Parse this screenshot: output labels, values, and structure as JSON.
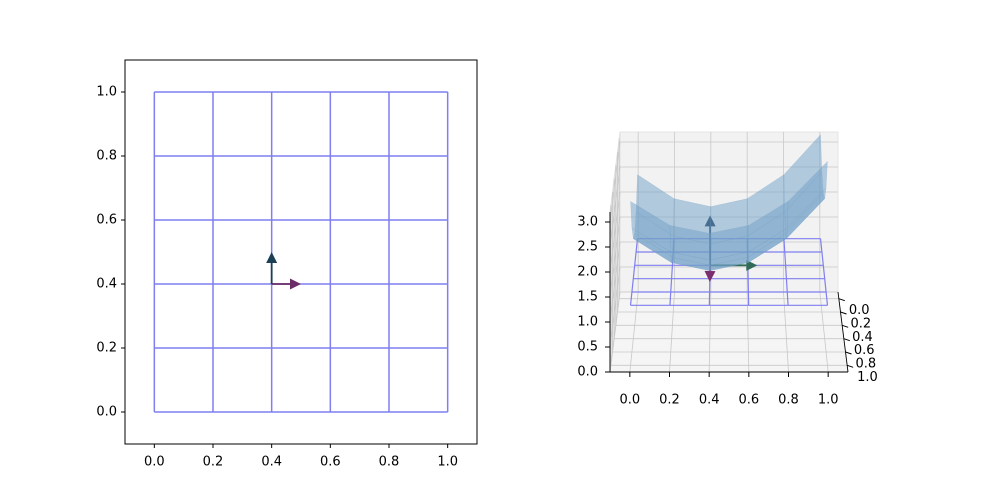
{
  "chart_data": [
    {
      "type": "quiver",
      "xlim": [
        -0.1,
        1.1
      ],
      "ylim": [
        -0.1,
        1.1
      ],
      "xticks": [
        {
          "value": 0,
          "label": "0.0"
        },
        {
          "value": 0.2,
          "label": "0.2"
        },
        {
          "value": 0.4,
          "label": "0.4"
        },
        {
          "value": 0.6,
          "label": "0.6"
        },
        {
          "value": 0.8,
          "label": "0.8"
        },
        {
          "value": 1,
          "label": "1.0"
        }
      ],
      "yticks": [
        {
          "value": 0,
          "label": "0.0"
        },
        {
          "value": 0.2,
          "label": "0.2"
        },
        {
          "value": 0.4,
          "label": "0.4"
        },
        {
          "value": 0.6,
          "label": "0.6"
        },
        {
          "value": 0.8,
          "label": "0.8"
        },
        {
          "value": 1,
          "label": "1.0"
        }
      ],
      "mesh": [
        0,
        0.2,
        0.4,
        0.6,
        0.8,
        1
      ],
      "mesh_color": "#7f7ff0",
      "arrows": [
        {
          "x": 0.4,
          "y": 0.4,
          "u": 0.1,
          "v": 0,
          "color": "#6b2d68"
        },
        {
          "x": 0.4,
          "y": 0.4,
          "u": 0,
          "v": 0.1,
          "color": "#1c3f55"
        }
      ]
    },
    {
      "type": "surface3d",
      "xlim": [
        -0.1,
        1.1
      ],
      "ylim": [
        -0.1,
        1.1
      ],
      "zlim": [
        0,
        3.2
      ],
      "xticks": [
        {
          "value": 0,
          "label": "0.0"
        },
        {
          "value": 0.2,
          "label": "0.2"
        },
        {
          "value": 0.4,
          "label": "0.4"
        },
        {
          "value": 0.6,
          "label": "0.6"
        },
        {
          "value": 0.8,
          "label": "0.8"
        },
        {
          "value": 1,
          "label": "1.0"
        }
      ],
      "yticks": [
        {
          "value": 0,
          "label": "0.0"
        },
        {
          "value": 0.2,
          "label": "0.2"
        },
        {
          "value": 0.4,
          "label": "0.4"
        },
        {
          "value": 0.6,
          "label": "0.6"
        },
        {
          "value": 0.8,
          "label": "0.8"
        },
        {
          "value": 1,
          "label": "1.0"
        }
      ],
      "zticks": [
        {
          "value": 0,
          "label": "0.0"
        },
        {
          "value": 0.5,
          "label": "0.5"
        },
        {
          "value": 1,
          "label": "1.0"
        },
        {
          "value": 1.5,
          "label": "1.5"
        },
        {
          "value": 2,
          "label": "2.0"
        },
        {
          "value": 2.5,
          "label": "2.5"
        },
        {
          "value": 3,
          "label": "3.0"
        }
      ],
      "x": [
        0,
        0.2,
        0.4,
        0.6,
        0.8,
        1
      ],
      "y": [
        0,
        0.2,
        0.4,
        0.6,
        0.8,
        1
      ],
      "z": [
        [
          2.48,
          2.0,
          1.84,
          2.0,
          2.48,
          3.28
        ],
        [
          2.0,
          1.52,
          1.36,
          1.52,
          2.0,
          2.8
        ],
        [
          1.84,
          1.36,
          1.2,
          1.36,
          1.84,
          2.64
        ],
        [
          2.0,
          1.52,
          1.36,
          1.52,
          2.0,
          2.8
        ],
        [
          2.48,
          2.0,
          1.84,
          2.0,
          2.48,
          3.28
        ],
        [
          3.28,
          2.8,
          2.64,
          2.8,
          3.28,
          4.08
        ]
      ],
      "surface_color": "#6f9fc6",
      "mesh_z": 1.2,
      "mesh_color": "#7f7ff0",
      "arrows": [
        {
          "x": 0.4,
          "y": 0.4,
          "z": 1.2,
          "u": 0.25,
          "v": 0,
          "w": 0,
          "color": "#2f6b57"
        },
        {
          "x": 0.4,
          "y": 0.4,
          "z": 1.2,
          "u": 0,
          "v": 0.25,
          "w": 0,
          "color": "#7a2e6e"
        },
        {
          "x": 0.4,
          "y": 0.4,
          "z": 1.2,
          "u": 0,
          "v": 0,
          "w": 1,
          "color": "#1f3b5c"
        }
      ]
    }
  ]
}
